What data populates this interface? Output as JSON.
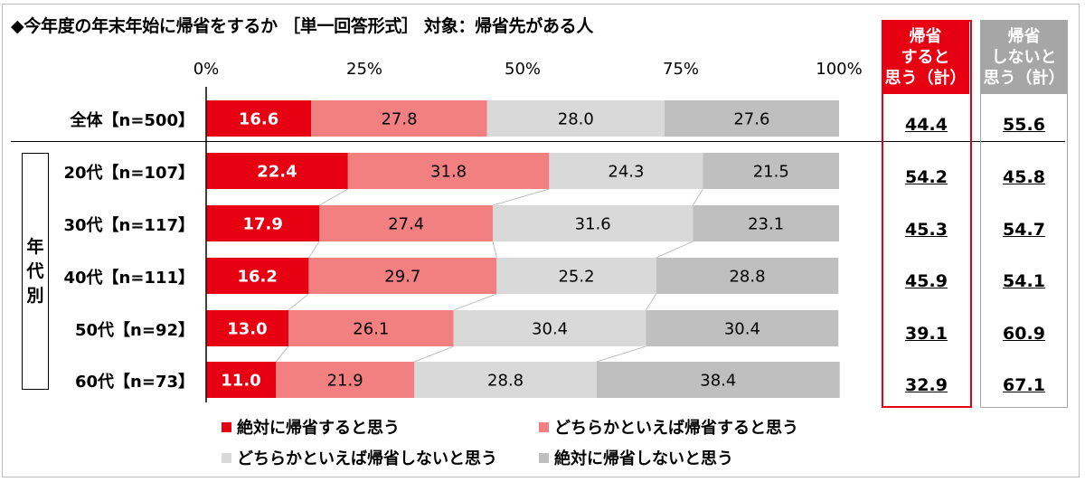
{
  "title": "◆今年度の年末年始に帰省をするか ［単一回答形式］ 対象：帰省先がある人",
  "group_label_chars": [
    "年",
    "代",
    "別"
  ],
  "colors": {
    "definitely_yes": "#e60012",
    "probably_yes": "#f28081",
    "probably_no": "#d9d9d9",
    "definitely_no": "#bfbfbf",
    "summary_yes_header": "#e60012",
    "summary_no_header": "#a6a6a6"
  },
  "summary": {
    "yes_header": "帰省\nすると\n思う（計）",
    "no_header": "帰省\nしないと\n思う（計）",
    "yes_values": [
      "44.4",
      "54.2",
      "45.3",
      "45.9",
      "39.1",
      "32.9"
    ],
    "no_values": [
      "55.6",
      "45.8",
      "54.7",
      "54.1",
      "60.9",
      "67.1"
    ]
  },
  "chart_data": {
    "type": "bar",
    "orientation": "horizontal",
    "stacked": true,
    "normalized_100": true,
    "title": "◆今年度の年末年始に帰省をするか ［単一回答形式］ 対象：帰省先がある人",
    "xlim": [
      0,
      100
    ],
    "x_ticks": [
      "0%",
      "25%",
      "50%",
      "75%",
      "100%"
    ],
    "grid": false,
    "legend_position": "bottom",
    "categories": [
      "全体【n=500】",
      "20代【n=107】",
      "30代【n=117】",
      "40代【n=111】",
      "50代【n=92】",
      "60代【n=73】"
    ],
    "series": [
      {
        "name": "絶対に帰省すると思う",
        "values": [
          16.6,
          22.4,
          17.9,
          16.2,
          13.0,
          11.0
        ]
      },
      {
        "name": "どちらかといえば帰省すると思う",
        "values": [
          27.8,
          31.8,
          27.4,
          29.7,
          26.1,
          21.9
        ]
      },
      {
        "name": "どちらかといえば帰省しないと思う",
        "values": [
          28.0,
          24.3,
          31.6,
          25.2,
          30.4,
          28.8
        ]
      },
      {
        "name": "絶対に帰省しないと思う",
        "values": [
          27.6,
          21.5,
          23.1,
          28.8,
          30.4,
          38.4
        ]
      }
    ]
  }
}
